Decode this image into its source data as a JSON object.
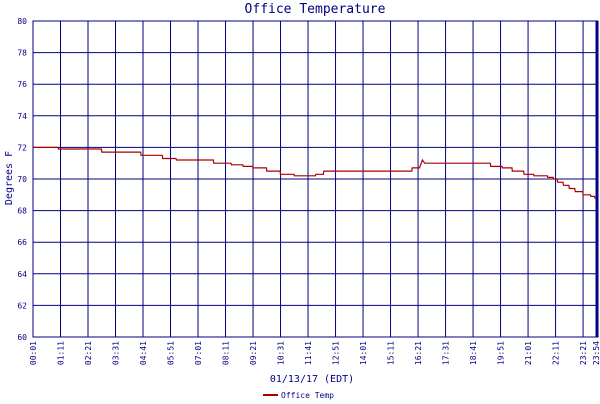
{
  "chart_data": {
    "type": "line",
    "title": "Office Temperature",
    "xlabel": "01/13/17 (EDT)",
    "ylabel": "Degrees F",
    "x_tick_labels": [
      "00:01",
      "01:11",
      "02:21",
      "03:31",
      "04:41",
      "05:51",
      "07:01",
      "08:11",
      "09:21",
      "10:31",
      "11:41",
      "12:51",
      "14:01",
      "15:11",
      "16:21",
      "17:31",
      "18:41",
      "19:51",
      "21:01",
      "22:11",
      "23:21",
      "23:54"
    ],
    "y_ticks": [
      "60",
      "62",
      "64",
      "66",
      "68",
      "70",
      "72",
      "74",
      "76",
      "78",
      "80"
    ],
    "ylim": [
      60,
      80
    ],
    "xlim": [
      "00:01",
      "23:59"
    ],
    "grid": true,
    "legend_position": "bottom-left",
    "colors": {
      "title": "#000080",
      "axis_text": "#000080",
      "grid": "#000080",
      "series": "#aa0000"
    },
    "series": [
      {
        "name": "Office Temp",
        "color": "#aa0000",
        "points": [
          [
            "00:01",
            72.0
          ],
          [
            "01:05",
            72.0
          ],
          [
            "01:06",
            71.9
          ],
          [
            "02:55",
            71.9
          ],
          [
            "02:56",
            71.7
          ],
          [
            "04:35",
            71.7
          ],
          [
            "04:36",
            71.5
          ],
          [
            "05:30",
            71.5
          ],
          [
            "05:31",
            71.3
          ],
          [
            "06:05",
            71.3
          ],
          [
            "06:06",
            71.2
          ],
          [
            "07:40",
            71.2
          ],
          [
            "07:41",
            71.0
          ],
          [
            "08:25",
            71.0
          ],
          [
            "08:26",
            70.9
          ],
          [
            "08:55",
            70.9
          ],
          [
            "08:56",
            70.8
          ],
          [
            "09:20",
            70.8
          ],
          [
            "09:21",
            70.7
          ],
          [
            "09:55",
            70.7
          ],
          [
            "09:56",
            70.5
          ],
          [
            "10:30",
            70.5
          ],
          [
            "10:31",
            70.3
          ],
          [
            "11:05",
            70.3
          ],
          [
            "11:06",
            70.2
          ],
          [
            "12:00",
            70.2
          ],
          [
            "12:01",
            70.3
          ],
          [
            "12:20",
            70.3
          ],
          [
            "12:21",
            70.5
          ],
          [
            "16:05",
            70.5
          ],
          [
            "16:06",
            70.7
          ],
          [
            "16:25",
            70.7
          ],
          [
            "16:26",
            70.8
          ],
          [
            "16:32",
            71.2
          ],
          [
            "16:38",
            71.0
          ],
          [
            "19:25",
            71.0
          ],
          [
            "19:26",
            70.8
          ],
          [
            "19:55",
            70.8
          ],
          [
            "19:56",
            70.7
          ],
          [
            "20:20",
            70.7
          ],
          [
            "20:21",
            70.5
          ],
          [
            "20:50",
            70.5
          ],
          [
            "20:51",
            70.3
          ],
          [
            "21:15",
            70.3
          ],
          [
            "21:16",
            70.2
          ],
          [
            "21:50",
            70.2
          ],
          [
            "21:51",
            70.1
          ],
          [
            "22:05",
            70.1
          ],
          [
            "22:06",
            70.0
          ],
          [
            "22:15",
            70.0
          ],
          [
            "22:16",
            69.8
          ],
          [
            "22:30",
            69.8
          ],
          [
            "22:31",
            69.6
          ],
          [
            "22:45",
            69.6
          ],
          [
            "22:46",
            69.4
          ],
          [
            "23:00",
            69.4
          ],
          [
            "23:01",
            69.2
          ],
          [
            "23:20",
            69.2
          ],
          [
            "23:21",
            69.0
          ],
          [
            "23:40",
            69.0
          ],
          [
            "23:41",
            68.9
          ],
          [
            "23:50",
            68.9
          ],
          [
            "23:51",
            68.8
          ],
          [
            "23:59",
            68.8
          ]
        ]
      }
    ]
  }
}
